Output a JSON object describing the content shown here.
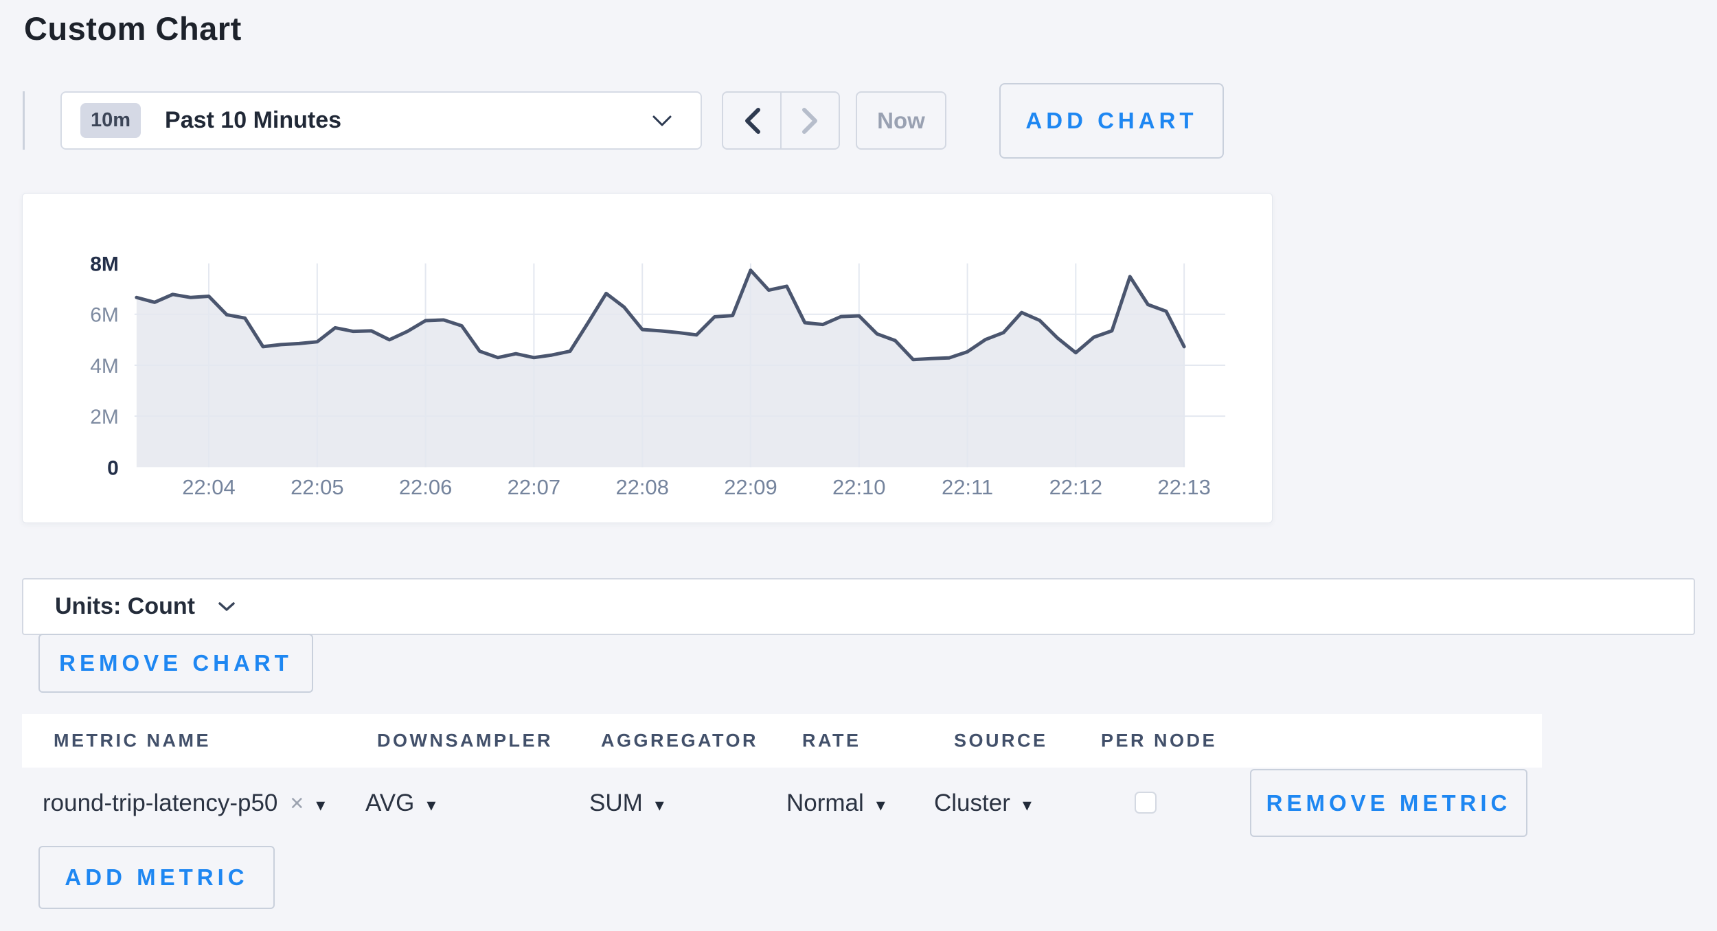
{
  "page": {
    "title": "Custom Chart",
    "background_color": "#f4f5f9",
    "accent_blue": "#1e87f2"
  },
  "toolbar": {
    "range_badge": "10m",
    "range_label": "Past 10 Minutes",
    "now_label": "Now",
    "add_chart_label": "ADD CHART",
    "icons": {
      "range_chevron": "chevron-down",
      "prev": "chevron-left",
      "next": "chevron-right"
    }
  },
  "chart_data": {
    "type": "area",
    "title": "",
    "legend": "none",
    "grid": true,
    "ylabel": "count",
    "ylim": [
      0,
      8
    ],
    "y_unit": "millions",
    "y_ticks": [
      {
        "label": "8M",
        "value": 8,
        "strong": true
      },
      {
        "label": "6M",
        "value": 6,
        "strong": false
      },
      {
        "label": "4M",
        "value": 4,
        "strong": false
      },
      {
        "label": "2M",
        "value": 2,
        "strong": false
      },
      {
        "label": "0",
        "value": 0,
        "strong": true
      }
    ],
    "x_ticks": [
      "22:04",
      "22:05",
      "22:06",
      "22:07",
      "22:08",
      "22:09",
      "22:10",
      "22:11",
      "22:12",
      "22:13"
    ],
    "x_start": "22:03:20",
    "x_end": "22:13:00",
    "interval_seconds": 10,
    "first_tick_index": 4,
    "points_per_minute": 6,
    "series": [
      {
        "name": "round-trip-latency-p50",
        "values_in_millions": [
          6.66,
          6.47,
          6.78,
          6.66,
          6.71,
          5.98,
          5.85,
          4.73,
          4.81,
          4.85,
          4.92,
          5.47,
          5.33,
          5.35,
          5.0,
          5.33,
          5.75,
          5.78,
          5.55,
          4.55,
          4.3,
          4.45,
          4.3,
          4.4,
          4.55,
          5.67,
          6.82,
          6.28,
          5.4,
          5.35,
          5.28,
          5.19,
          5.9,
          5.95,
          7.73,
          6.95,
          7.1,
          5.67,
          5.6,
          5.91,
          5.94,
          5.23,
          4.97,
          4.22,
          4.26,
          4.29,
          4.53,
          5.01,
          5.28,
          6.07,
          5.76,
          5.06,
          4.49,
          5.1,
          5.35,
          7.48,
          6.38,
          6.12,
          4.73
        ]
      }
    ],
    "line_color": "#4a556e",
    "fill_color": "#e9ebf1",
    "grid_color": "#e4e8f0"
  },
  "units_bar": {
    "label": "Units: Count",
    "icon": "chevron-down"
  },
  "chart_actions": {
    "remove_chart_label": "REMOVE CHART"
  },
  "metrics_table": {
    "columns": [
      "METRIC NAME",
      "DOWNSAMPLER",
      "AGGREGATOR",
      "RATE",
      "SOURCE",
      "PER NODE"
    ],
    "rows": [
      {
        "metric_name": "round-trip-latency-p50",
        "downsampler": "AVG",
        "aggregator": "SUM",
        "rate": "Normal",
        "source": "Cluster",
        "per_node_checked": false,
        "remove_label": "REMOVE METRIC"
      }
    ],
    "add_metric_label": "ADD METRIC",
    "icons": {
      "clear_x": "×",
      "dropdown_caret": "▾"
    }
  }
}
